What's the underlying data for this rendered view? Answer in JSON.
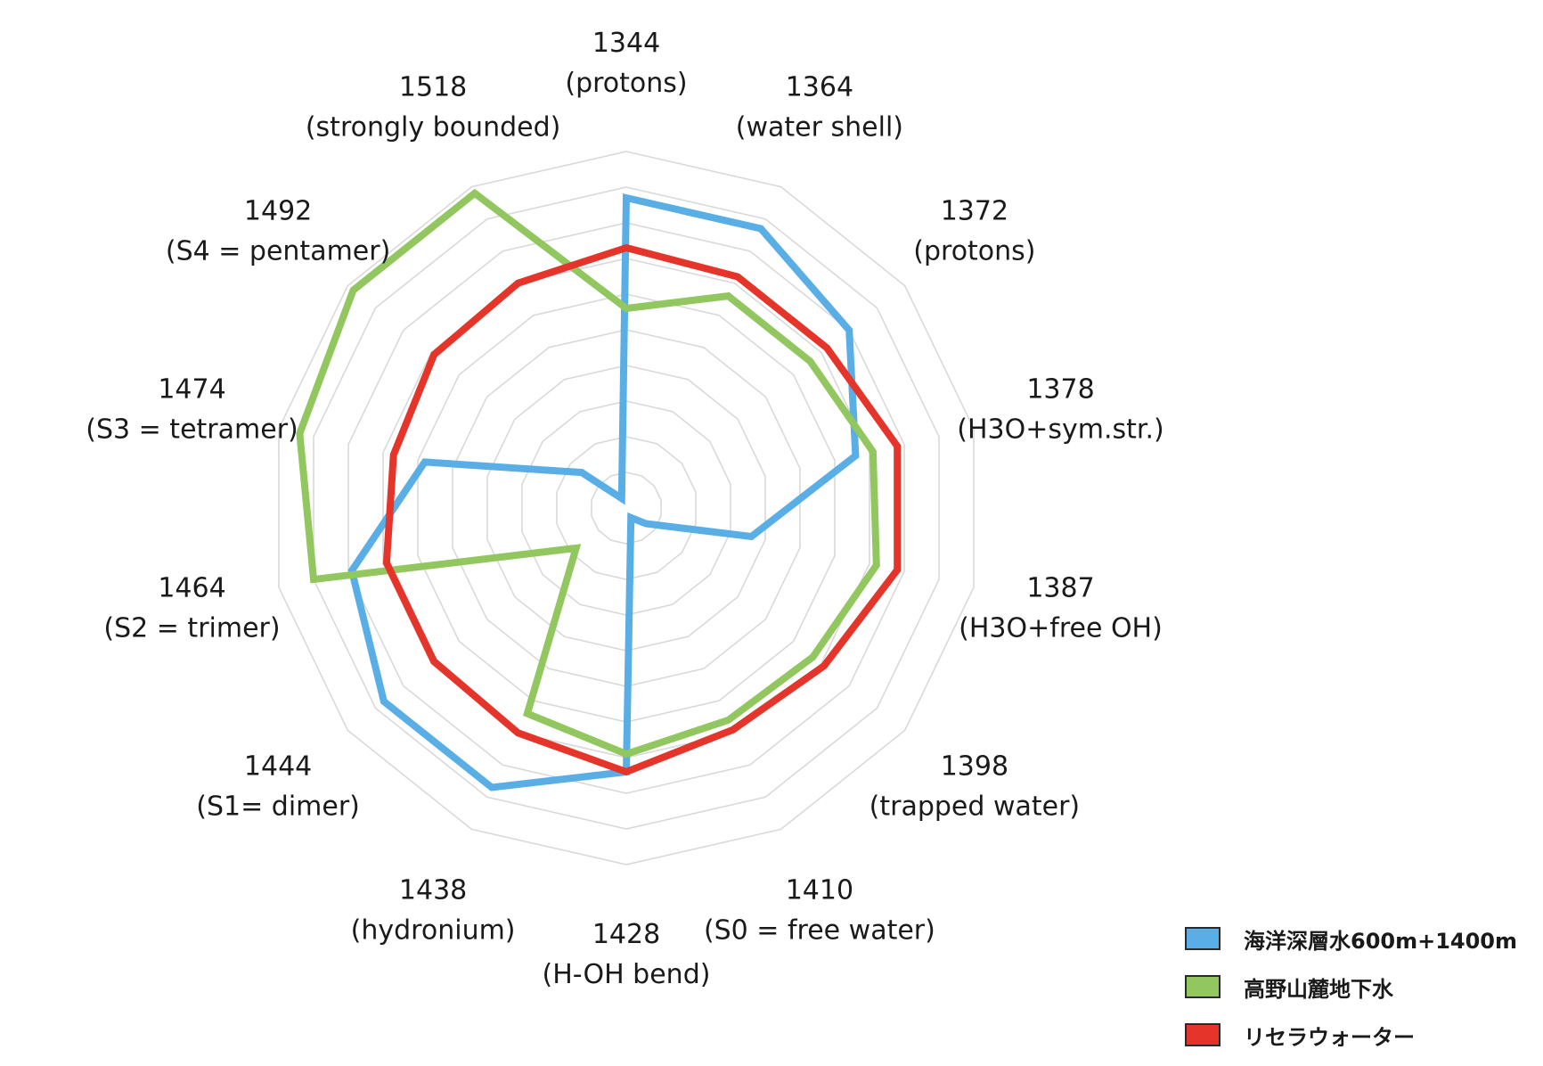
{
  "chart_data": {
    "type": "radar",
    "title": "",
    "grid": true,
    "grid_shape": "polygon",
    "rmax": 10,
    "legend_position": "bottom-right",
    "categories": [
      {
        "value": "1344",
        "name": "(protons)"
      },
      {
        "value": "1364",
        "name": "(water shell)"
      },
      {
        "value": "1372",
        "name": "(protons)"
      },
      {
        "value": "1378",
        "name": "(H3O+sym.str.)"
      },
      {
        "value": "1387",
        "name": "(H3O+free OH)"
      },
      {
        "value": "1398",
        "name": "(trapped water)"
      },
      {
        "value": "1410",
        "name": "(S0 = free water)"
      },
      {
        "value": "1428",
        "name": "(H-OH bend)"
      },
      {
        "value": "1438",
        "name": "(hydronium)"
      },
      {
        "value": "1444",
        "name": "(S1= dimer)"
      },
      {
        "value": "1464",
        "name": "(S2 = trimer)"
      },
      {
        "value": "1474",
        "name": "(S3 = tetramer)"
      },
      {
        "value": "1492",
        "name": "(S4 = pentamer)"
      },
      {
        "value": "1518",
        "name": "(strongly bounded)"
      }
    ],
    "series": [
      {
        "name": "海洋深層水600m+1400m",
        "color": "#5aaee6",
        "values": [
          8.7,
          8.7,
          8.0,
          6.6,
          3.6,
          0.7,
          0.3,
          7.4,
          8.7,
          8.7,
          7.9,
          5.8,
          1.6,
          0.3
        ]
      },
      {
        "name": "高野山麓地下水",
        "color": "#92c760",
        "values": [
          5.6,
          6.6,
          6.6,
          7.1,
          7.2,
          6.7,
          6.6,
          6.9,
          6.4,
          1.8,
          9.0,
          9.4,
          9.8,
          9.8
        ]
      },
      {
        "name": "リセラウォーター",
        "color": "#e5352b",
        "values": [
          7.3,
          7.2,
          7.2,
          7.8,
          7.8,
          7.1,
          6.9,
          7.4,
          7.0,
          6.9,
          6.9,
          6.7,
          6.9,
          7.0
        ]
      }
    ]
  }
}
